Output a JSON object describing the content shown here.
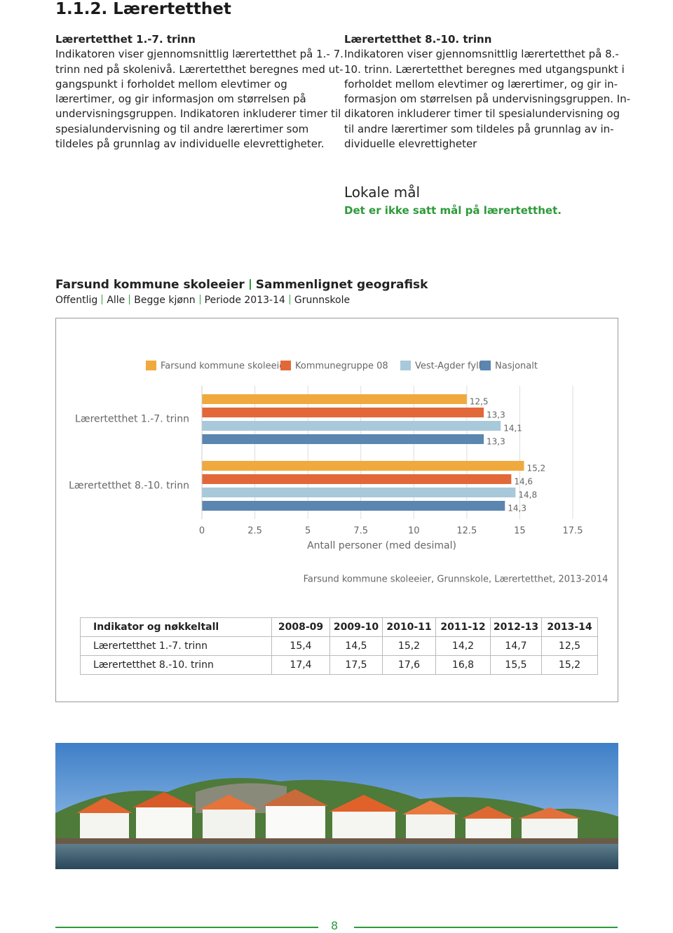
{
  "heading": "1.1.2. Lærertetthet",
  "columns": [
    {
      "title": "Lærertetthet 1.-7. trinn",
      "lines": [
        "Indikatoren viser gjennomsnittlig lærertetthet på 1.- 7.",
        "trinn ned på skolenivå. Lærertetthet beregnes med ut-",
        "gangspunkt i forholdet mellom elevtimer og",
        "lærertimer, og gir informasjon om størrelsen på",
        "undervisningsgruppen. Indikatoren inkluderer timer til",
        "spesialundervisning og til andre lærertimer som",
        "tildeles på grunnlag av individuelle elevrettigheter."
      ]
    },
    {
      "title": "Lærertetthet 8.-10. trinn",
      "lines": [
        "Indikatoren viser gjennomsnittlig lærertetthet på 8.-",
        "10. trinn. Lærertetthet beregnes med utgangspunkt i",
        "forholdet mellom elevtimer og lærertimer, og gir in-",
        "formasjon om størrelsen på undervisningsgruppen. In-",
        "dikatoren inkluderer timer til spesialundervisning og",
        "til andre lærertimer som tildeles på grunnlag av in-",
        "dividuelle elevrettigheter"
      ]
    }
  ],
  "local_goals": {
    "title": "Lokale mål",
    "text": "Det er ikke satt mål på lærertetthet."
  },
  "figure": {
    "title_parts": [
      "Farsund kommune skoleeier",
      "Sammenlignet geografisk"
    ],
    "filters": [
      "Offentlig",
      "Alle",
      "Begge kjønn",
      "Periode 2013-14",
      "Grunnskole"
    ]
  },
  "chart_data": {
    "type": "bar",
    "orientation": "horizontal",
    "categories": [
      "Lærertetthet 1.-7. trinn",
      "Lærertetthet 8.-10. trinn"
    ],
    "series": [
      {
        "name": "Farsund kommune skoleeier",
        "color": "#f0a93c",
        "values": [
          12.5,
          15.2
        ],
        "value_labels": [
          "12,5",
          "15,2"
        ]
      },
      {
        "name": "Kommunegruppe 08",
        "color": "#e2683a",
        "values": [
          13.3,
          14.6
        ],
        "value_labels": [
          "13,3",
          "14,6"
        ]
      },
      {
        "name": "Vest-Agder fylke",
        "color": "#a8c9d9",
        "values": [
          14.1,
          14.8
        ],
        "value_labels": [
          "14,1",
          "14,8"
        ]
      },
      {
        "name": "Nasjonalt",
        "color": "#5a86b0",
        "values": [
          13.3,
          14.3
        ],
        "value_labels": [
          "13,3",
          "14,3"
        ]
      }
    ],
    "xlim": [
      0,
      17.5
    ],
    "xticks": [
      0,
      2.5,
      5,
      7.5,
      10,
      12.5,
      15,
      17.5
    ],
    "xlabel": "Antall personer (med desimal)",
    "caption": "Farsund kommune skoleeier, Grunnskole, Lærertetthet, 2013-2014",
    "grid": true,
    "legend": "top"
  },
  "table": {
    "header": [
      "Indikator og nøkkeltall",
      "2008-09",
      "2009-10",
      "2010-11",
      "2011-12",
      "2012-13",
      "2013-14"
    ],
    "rows": [
      [
        "Lærertetthet 1.-7. trinn",
        "15,4",
        "14,5",
        "15,2",
        "14,2",
        "14,7",
        "12,5"
      ],
      [
        "Lærertetthet 8.-10. trinn",
        "17,4",
        "17,5",
        "17,6",
        "16,8",
        "15,5",
        "15,2"
      ]
    ]
  },
  "page_number": "8"
}
